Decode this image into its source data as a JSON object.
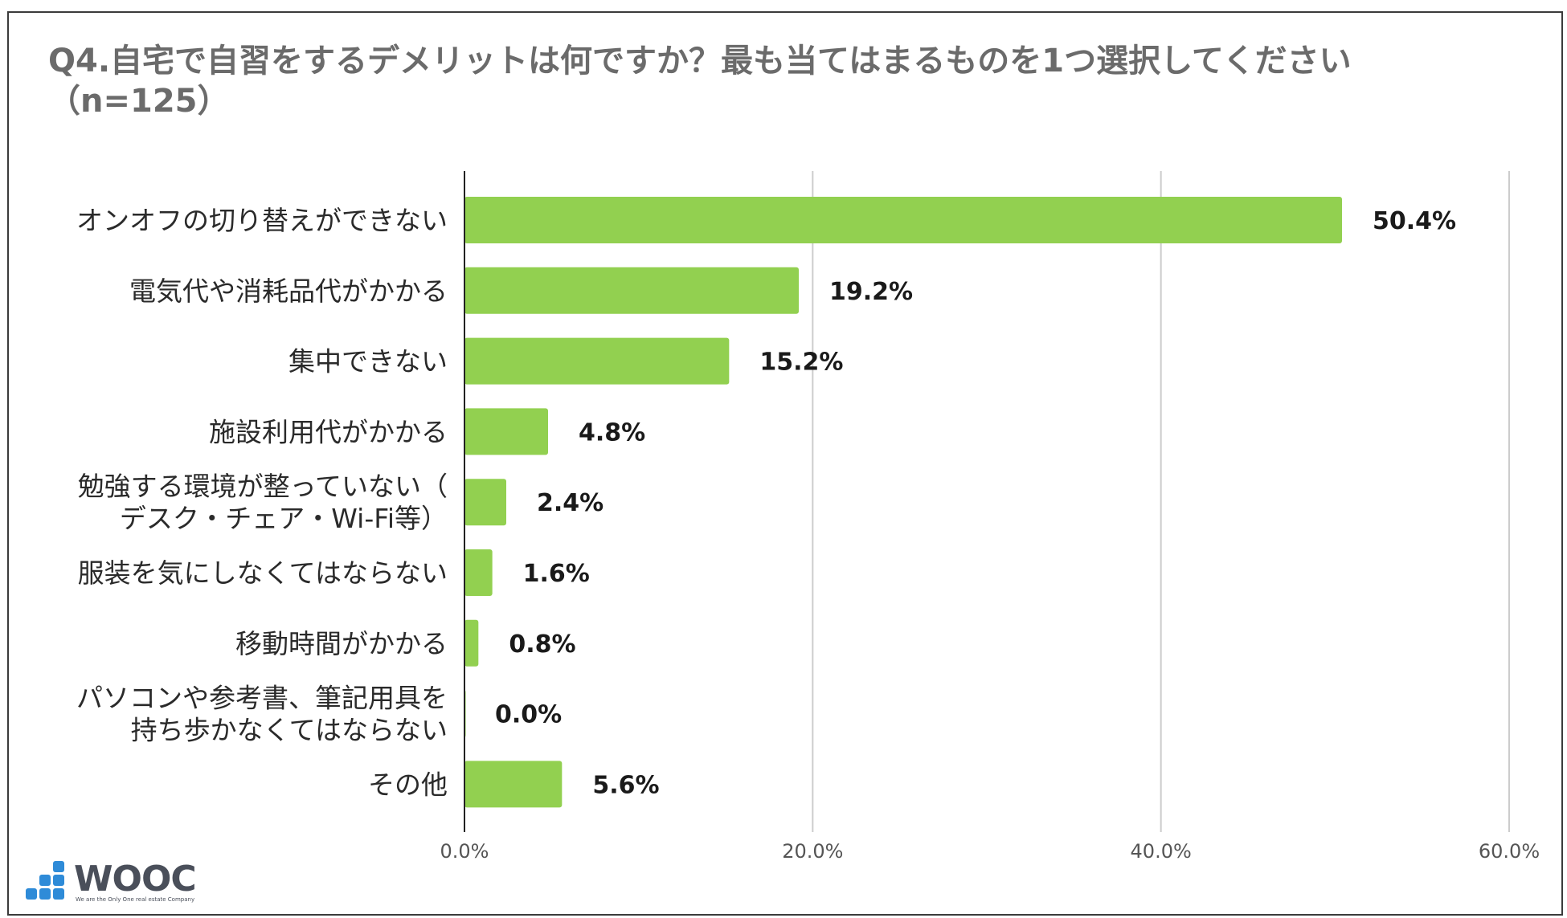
{
  "colors": {
    "bar": "#92d050",
    "grid": "#cccccc",
    "axis": "#222222",
    "title": "#6b6b6b",
    "logo_blue": "#2e8bd8",
    "logo_text": "#4a4f5a"
  },
  "logo": {
    "name": "WOOC",
    "tagline": "We are the Only One real estate Company",
    "icon": "stair-blocks-icon"
  },
  "chart_data": {
    "type": "bar",
    "orientation": "horizontal",
    "title": "Q4.自宅で自習をするデメリットは何ですか？最も当てはまるものを1つ選択してください",
    "subtitle": "（n=125）",
    "categories": [
      [
        "オンオフの切り替えができない"
      ],
      [
        "電気代や消耗品代がかかる"
      ],
      [
        "集中できない"
      ],
      [
        "施設利用代がかかる"
      ],
      [
        "勉強する環境が整っていない（",
        "デスク・チェア・Wi-Fi等）"
      ],
      [
        "服装を気にしなくてはならない"
      ],
      [
        "移動時間がかかる"
      ],
      [
        "パソコンや参考書、筆記用具を",
        "持ち歩かなくてはならない"
      ],
      [
        "その他"
      ]
    ],
    "values": [
      50.4,
      19.2,
      15.2,
      4.8,
      2.4,
      1.6,
      0.8,
      0.0,
      5.6
    ],
    "value_labels": [
      "50.4%",
      "19.2%",
      "15.2%",
      "4.8%",
      "2.4%",
      "1.6%",
      "0.8%",
      "0.0%",
      "5.6%"
    ],
    "xlim": [
      0,
      60
    ],
    "xticks": [
      0,
      20,
      40,
      60
    ],
    "xtick_labels": [
      "0.0%",
      "20.0%",
      "40.0%",
      "60.0%"
    ],
    "grid": true,
    "legend": "none"
  }
}
